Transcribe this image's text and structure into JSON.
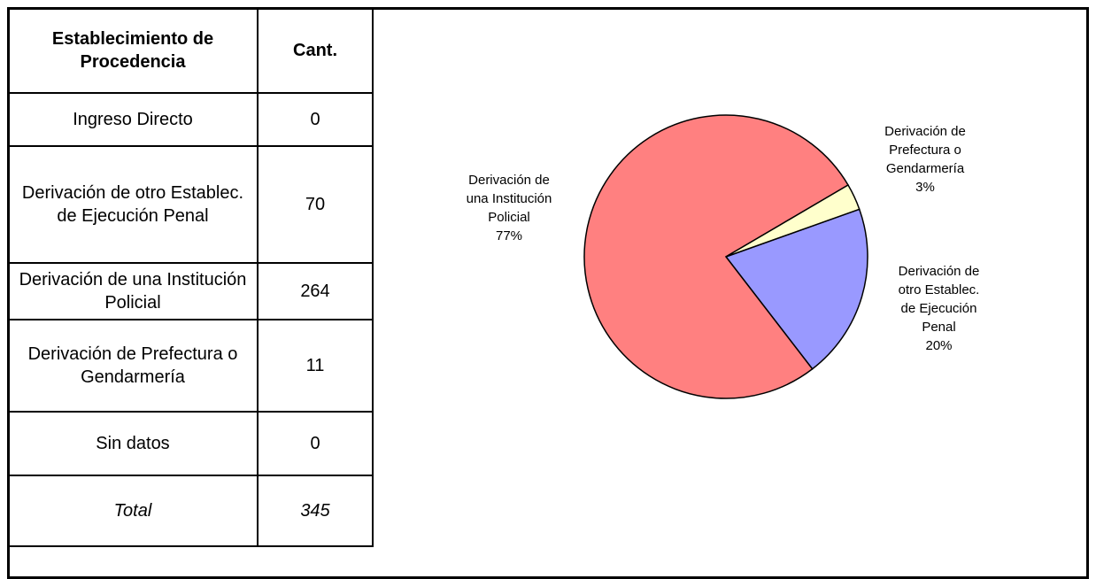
{
  "table": {
    "header": [
      "Establecimiento de Procedencia",
      "Cant."
    ],
    "rows": [
      [
        "Ingreso Directo",
        0
      ],
      [
        "Derivación de otro Establec. de Ejecución Penal",
        70
      ],
      [
        "Derivación de una Institución Policial",
        264
      ],
      [
        "Derivación de Prefectura o Gendarmería",
        11
      ],
      [
        "Sin datos",
        0
      ]
    ],
    "total": [
      "Total",
      345
    ]
  },
  "chart_data": {
    "type": "pie",
    "categories": [
      "Derivación de otro Establec. de Ejecución Penal",
      "Derivación de una Institución Policial",
      "Derivación de Prefectura o Gendarmería"
    ],
    "values": [
      20,
      77,
      3
    ],
    "value_labels": [
      "20%",
      "77%",
      "3%"
    ],
    "colors": [
      "#9999ff",
      "#ff8080",
      "#ffffcc"
    ]
  }
}
